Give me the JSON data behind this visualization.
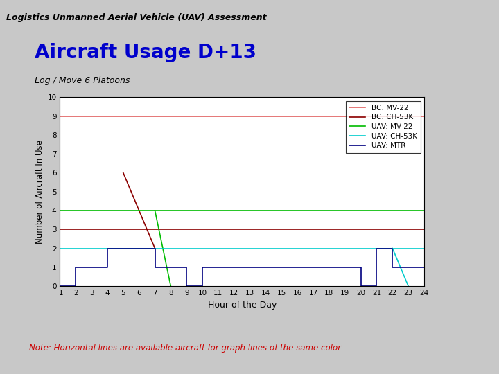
{
  "title": "Aircraft Usage D+13",
  "subtitle": "Log / Move 6 Platoons",
  "header": "Logistics Unmanned Aerial Vehicle (UAV) Assessment",
  "xlabel": "Hour of the Day",
  "ylabel": "Number of Aircraft In Use",
  "note": "Note: Horizontal lines are available aircraft for graph lines of the same color.",
  "xlim": [
    1,
    24
  ],
  "ylim": [
    0,
    10
  ],
  "yticks": [
    0,
    1,
    2,
    3,
    4,
    5,
    6,
    7,
    8,
    9,
    10
  ],
  "xtick_labels": [
    "'1",
    "2",
    "3",
    "4",
    "5",
    "6",
    "7",
    "8",
    "9",
    "10",
    "11",
    "12",
    "13",
    "14",
    "15",
    "16",
    "17",
    "18",
    "19",
    "20",
    "21",
    "22",
    "23",
    "24"
  ],
  "background_color": "#c8c8c8",
  "plot_bg_color": "#ffffff",
  "legend_entries": [
    {
      "label": "BC: MV-22",
      "color": "#e06060"
    },
    {
      "label": "BC: CH-53K",
      "color": "#8b0000"
    },
    {
      "label": "UAV: MV-22",
      "color": "#00bb00"
    },
    {
      "label": "UAV: CH-53K",
      "color": "#00cccc"
    },
    {
      "label": "UAV: MTR",
      "color": "#000080"
    }
  ],
  "series": [
    {
      "label": "BC: MV-22",
      "color": "#e06060",
      "linewidth": 1.2,
      "type": "horizontal",
      "y": 9
    },
    {
      "label": "BC: CH-53K usage",
      "color": "#8b0000",
      "linewidth": 1.2,
      "type": "line",
      "x": [
        5,
        7
      ],
      "y": [
        6,
        2
      ]
    },
    {
      "label": "BC: CH-53K avail",
      "color": "#8b0000",
      "linewidth": 1.2,
      "type": "horizontal",
      "y": 3
    },
    {
      "label": "UAV: MV-22 usage",
      "color": "#00bb00",
      "linewidth": 1.2,
      "type": "line",
      "x": [
        7,
        8
      ],
      "y": [
        4,
        0
      ]
    },
    {
      "label": "UAV: MV-22 avail",
      "color": "#00bb00",
      "linewidth": 1.2,
      "type": "horizontal",
      "y": 4
    },
    {
      "label": "UAV: CH-53K usage",
      "color": "#00cccc",
      "linewidth": 1.2,
      "type": "line",
      "x": [
        22,
        23
      ],
      "y": [
        2,
        0
      ]
    },
    {
      "label": "UAV: CH-53K avail",
      "color": "#00cccc",
      "linewidth": 1.2,
      "type": "horizontal",
      "y": 2
    },
    {
      "label": "UAV: MTR",
      "color": "#000080",
      "linewidth": 1.2,
      "type": "line",
      "x": [
        1,
        2,
        2,
        3,
        3,
        4,
        4,
        5,
        5,
        7,
        7,
        8,
        8,
        9,
        9,
        10,
        10,
        11,
        20,
        20,
        21,
        21,
        22,
        22,
        23,
        23,
        24
      ],
      "y": [
        0,
        0,
        1,
        1,
        1,
        1,
        2,
        2,
        2,
        2,
        1,
        1,
        1,
        1,
        0,
        0,
        1,
        1,
        1,
        0,
        0,
        2,
        2,
        1,
        1,
        1,
        1
      ]
    }
  ]
}
